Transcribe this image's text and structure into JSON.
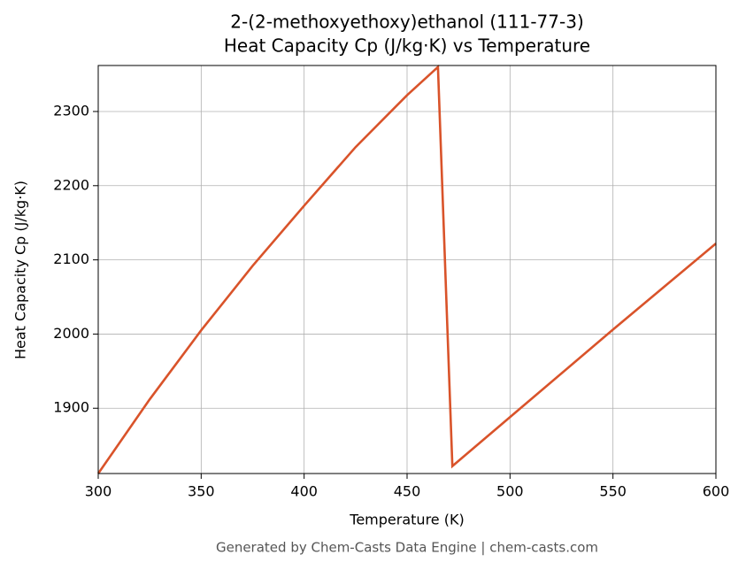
{
  "chart_data": {
    "type": "line",
    "title": [
      "2-(2-methoxyethoxy)ethanol (111-77-3)",
      "Heat Capacity Cp (J/kg·K) vs Temperature"
    ],
    "x_label": "Temperature (K)",
    "y_label": "Heat Capacity Cp (J/kg·K)",
    "footer": "Generated by Chem-Casts Data Engine | chem-casts.com",
    "x": [
      300,
      325,
      350,
      375,
      400,
      425,
      450,
      465,
      472,
      500,
      550,
      600
    ],
    "series": [
      {
        "name": "Cp",
        "color": "#d9532a",
        "values": [
          1812,
          1912,
          2005,
          2092,
          2173,
          2252,
          2322,
          2360,
          1822,
          1888,
          2006,
          2122
        ]
      }
    ],
    "xlim": [
      300,
      600
    ],
    "xticks": [
      300,
      350,
      400,
      450,
      500,
      550,
      600
    ],
    "ylim": [
      1812,
      2362
    ],
    "yticks": [
      1900,
      2000,
      2100,
      2200,
      2300
    ],
    "grid": true
  }
}
